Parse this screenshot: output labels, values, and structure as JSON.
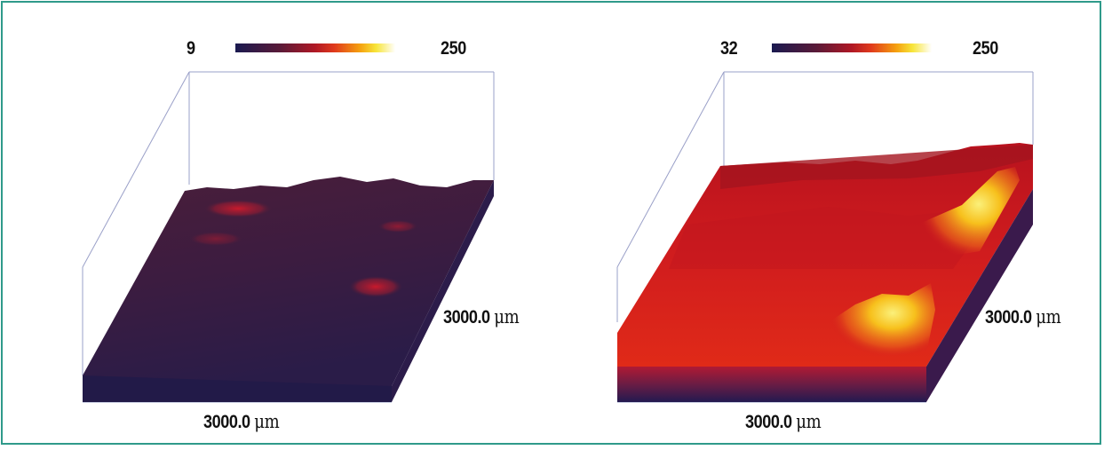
{
  "panels": [
    {
      "scale_min": "9",
      "scale_max": "250",
      "x_extent": "3000.0",
      "y_extent": "3000.0",
      "unit": "μm",
      "colormap": [
        "#1a1a50",
        "#5a1a38",
        "#b01825",
        "#e03a1c",
        "#f5a10f",
        "#f7e53a",
        "#ffffff"
      ]
    },
    {
      "scale_min": "32",
      "scale_max": "250",
      "x_extent": "3000.0",
      "y_extent": "3000.0",
      "unit": "μm",
      "colormap": [
        "#1a1a50",
        "#5a1a38",
        "#b01825",
        "#e03a1c",
        "#f5a10f",
        "#f7e53a",
        "#ffffff"
      ]
    }
  ]
}
